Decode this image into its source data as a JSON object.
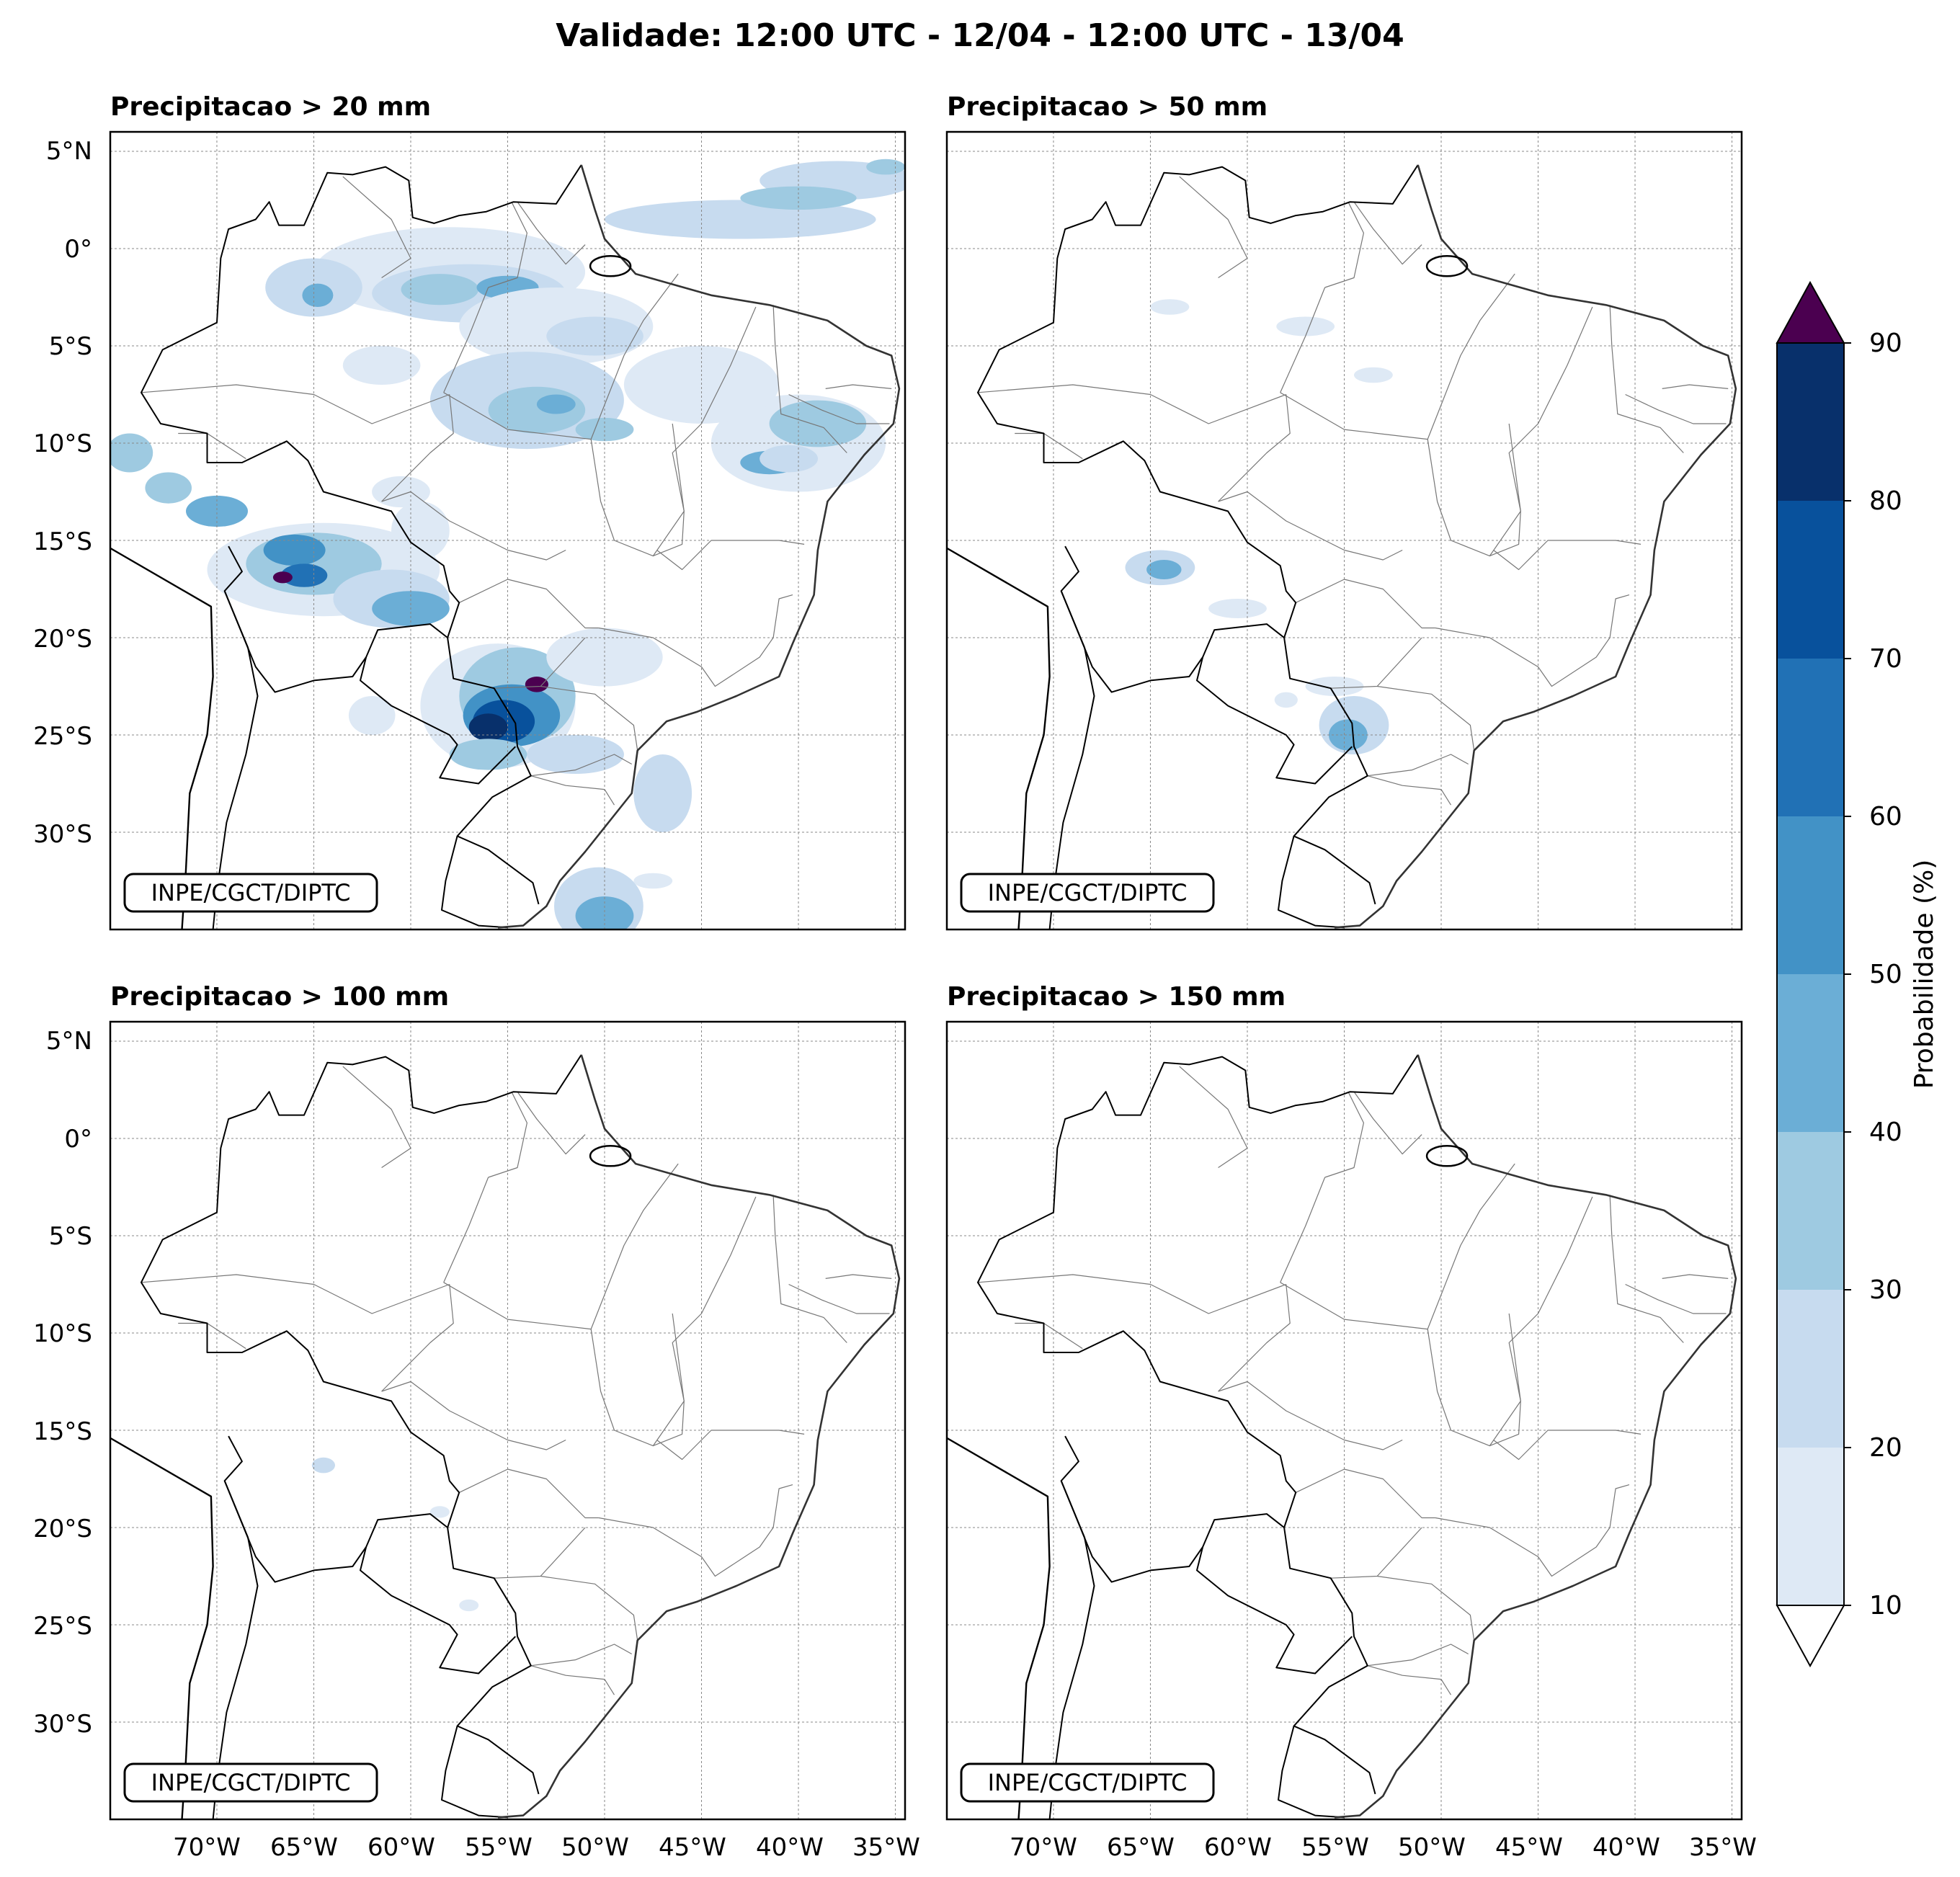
{
  "figure_title": "Validade: 12:00 UTC - 12/04 - 12:00 UTC - 13/04",
  "credit": "INPE/CGCT/DIPTC",
  "panels": [
    {
      "title": "Precipitacao > 20 mm"
    },
    {
      "title": "Precipitacao > 50 mm"
    },
    {
      "title": "Precipitacao > 100 mm"
    },
    {
      "title": "Precipitacao > 150 mm"
    }
  ],
  "lat_labels": [
    "5°N",
    "0°",
    "5°S",
    "10°S",
    "15°S",
    "20°S",
    "25°S",
    "30°S"
  ],
  "lon_labels": [
    "70°W",
    "65°W",
    "60°W",
    "55°W",
    "50°W",
    "45°W",
    "40°W",
    "35°W"
  ],
  "colorbar": {
    "label": "Probabilidade (%)",
    "ticks": [
      "10",
      "20",
      "30",
      "40",
      "50",
      "60",
      "70",
      "80",
      "90"
    ],
    "colors": [
      "#dee9f5",
      "#c7dbef",
      "#9ecae1",
      "#6baed6",
      "#4292c6",
      "#2171b5",
      "#08519c",
      "#08306b"
    ],
    "over_color": "#4b0050",
    "under_color": "#ffffff"
  }
}
